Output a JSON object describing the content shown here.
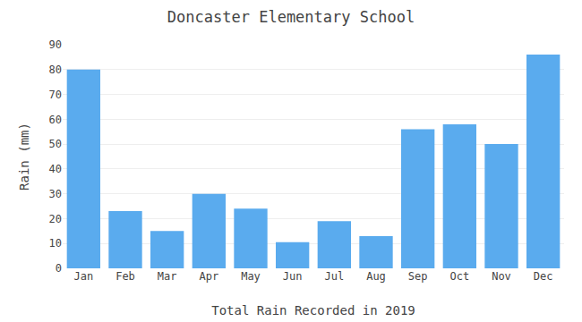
{
  "chart_data": {
    "type": "bar",
    "title": "Doncaster Elementary School",
    "xlabel": "Total Rain Recorded in 2019",
    "ylabel": "Rain (mm)",
    "categories": [
      "Jan",
      "Feb",
      "Mar",
      "Apr",
      "May",
      "Jun",
      "Jul",
      "Aug",
      "Sep",
      "Oct",
      "Nov",
      "Dec"
    ],
    "values": [
      80,
      23,
      15,
      30,
      24,
      10.5,
      19,
      13,
      56,
      58,
      50,
      86
    ],
    "color": "#5aabee",
    "ylim": [
      0,
      90
    ],
    "yticks": [
      0,
      10,
      20,
      30,
      40,
      50,
      60,
      70,
      80,
      90
    ],
    "grid": true
  }
}
